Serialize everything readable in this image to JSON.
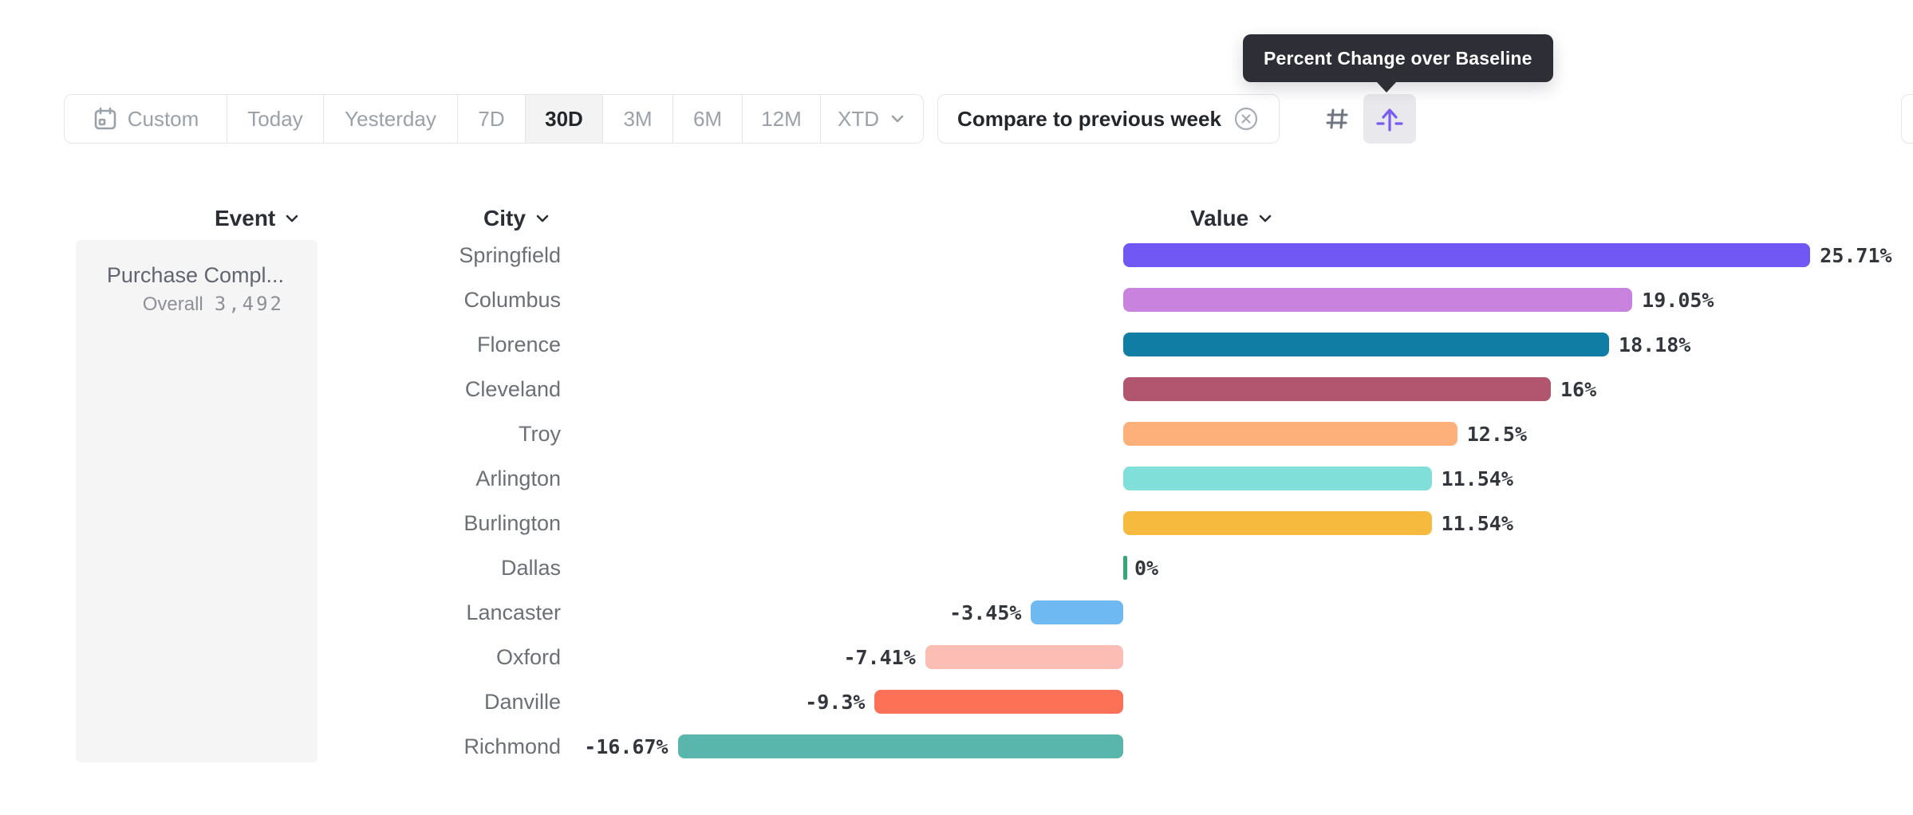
{
  "tooltip": {
    "text": "Percent Change over Baseline"
  },
  "toolbar": {
    "date_ranges": [
      {
        "label": "Custom",
        "selected": false
      },
      {
        "label": "Today",
        "selected": false
      },
      {
        "label": "Yesterday",
        "selected": false
      },
      {
        "label": "7D",
        "selected": false
      },
      {
        "label": "30D",
        "selected": true
      },
      {
        "label": "3M",
        "selected": false
      },
      {
        "label": "6M",
        "selected": false
      },
      {
        "label": "12M",
        "selected": false
      },
      {
        "label": "XTD",
        "selected": false
      }
    ],
    "compare_chip": {
      "label": "Compare to previous week"
    },
    "view_toggles": [
      {
        "name": "grid-view",
        "selected": false
      },
      {
        "name": "baseline-view",
        "selected": true
      }
    ]
  },
  "columns": {
    "event": "Event",
    "city": "City",
    "value": "Value"
  },
  "event_panel": {
    "event_name": "Purchase Compl...",
    "overall_label": "Overall",
    "overall_value": "3,492"
  },
  "colors": {
    "accent_purple": "#7a5cf5",
    "tooltip_bg": "#2e2e37",
    "border": "#e4e5e9",
    "muted_text": "#9ba1a9",
    "dark_text": "#23262b",
    "zero_tick_green": "#34a874"
  },
  "chart_data": {
    "type": "bar",
    "orientation": "horizontal",
    "title": "Percent Change over Baseline",
    "value_unit": "%",
    "categories": [
      "Springfield",
      "Columbus",
      "Florence",
      "Cleveland",
      "Troy",
      "Arlington",
      "Burlington",
      "Dallas",
      "Lancaster",
      "Oxford",
      "Danville",
      "Richmond"
    ],
    "values": [
      25.71,
      19.05,
      18.18,
      16,
      12.5,
      11.54,
      11.54,
      0,
      -3.45,
      -7.41,
      -9.3,
      -16.67
    ],
    "labels": [
      "25.71%",
      "19.05%",
      "18.18%",
      "16%",
      "12.5%",
      "11.54%",
      "11.54%",
      "0%",
      "-3.45%",
      "-7.41%",
      "-9.3%",
      "-16.67%"
    ],
    "bar_colors": [
      "#7158f5",
      "#c983de",
      "#107ea4",
      "#b25670",
      "#feb07a",
      "#80dfd8",
      "#f6bb3e",
      "#34a874",
      "#6fb9f3",
      "#fcbdb4",
      "#fd7156",
      "#59b6ac"
    ],
    "xlim": [
      -20,
      26
    ],
    "grid": false,
    "legend": false
  }
}
